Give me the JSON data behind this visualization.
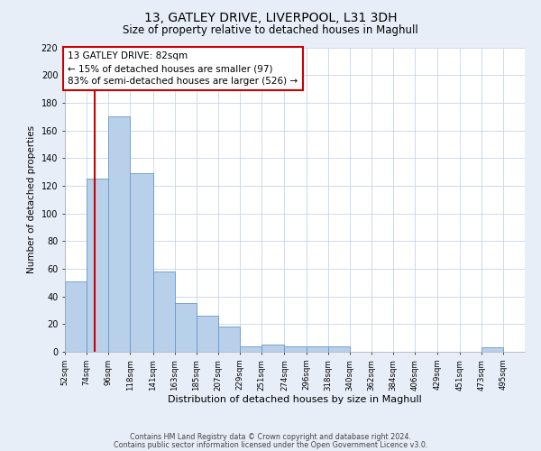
{
  "title": "13, GATLEY DRIVE, LIVERPOOL, L31 3DH",
  "subtitle": "Size of property relative to detached houses in Maghull",
  "xlabel": "Distribution of detached houses by size in Maghull",
  "ylabel": "Number of detached properties",
  "bin_labels": [
    "52sqm",
    "74sqm",
    "96sqm",
    "118sqm",
    "141sqm",
    "163sqm",
    "185sqm",
    "207sqm",
    "229sqm",
    "251sqm",
    "274sqm",
    "296sqm",
    "318sqm",
    "340sqm",
    "362sqm",
    "384sqm",
    "406sqm",
    "429sqm",
    "451sqm",
    "473sqm",
    "495sqm"
  ],
  "bin_edges": [
    52,
    74,
    96,
    118,
    141,
    163,
    185,
    207,
    229,
    251,
    274,
    296,
    318,
    340,
    362,
    384,
    406,
    429,
    451,
    473,
    495,
    517
  ],
  "bar_heights": [
    51,
    125,
    170,
    129,
    58,
    35,
    26,
    18,
    4,
    5,
    4,
    4,
    4,
    0,
    0,
    0,
    0,
    0,
    0,
    3,
    0
  ],
  "bar_color": "#b8d0ea",
  "bar_edge_color": "#6699cc",
  "ylim": [
    0,
    220
  ],
  "yticks": [
    0,
    20,
    40,
    60,
    80,
    100,
    120,
    140,
    160,
    180,
    200,
    220
  ],
  "vline_x": 82,
  "vline_color": "#cc0000",
  "annotation_text": "13 GATLEY DRIVE: 82sqm\n← 15% of detached houses are smaller (97)\n83% of semi-detached houses are larger (526) →",
  "annotation_box_color": "#ffffff",
  "annotation_box_edge": "#cc0000",
  "footer_line1": "Contains HM Land Registry data © Crown copyright and database right 2024.",
  "footer_line2": "Contains public sector information licensed under the Open Government Licence v3.0.",
  "background_color": "#e8eef8",
  "plot_background_color": "#ffffff",
  "grid_color": "#c8d4e8"
}
